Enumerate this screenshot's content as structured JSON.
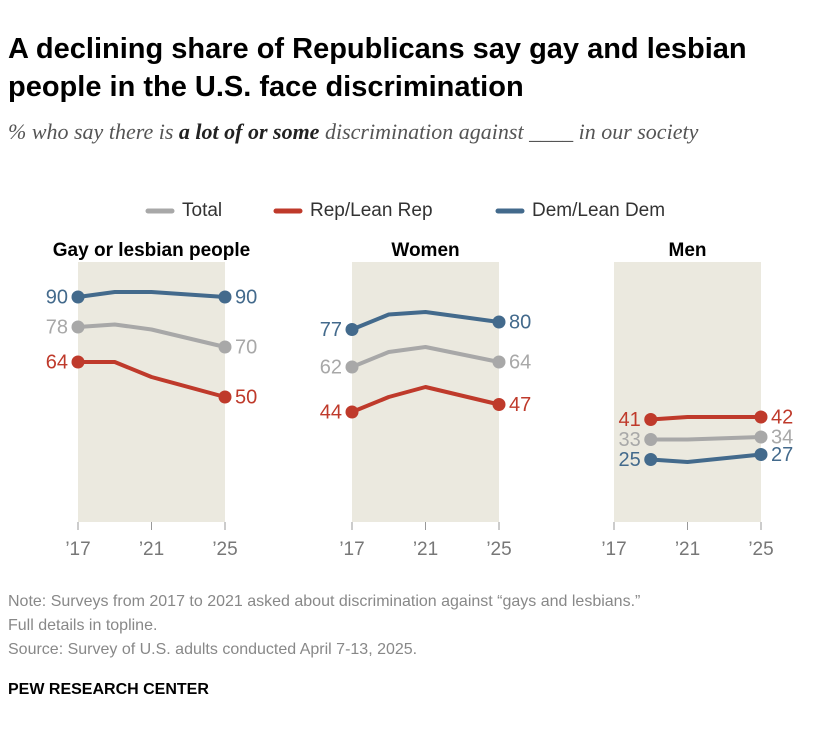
{
  "header": {
    "title": "A declining share of Republicans say gay and lesbian people in the U.S. face discrimination",
    "subtitle": [
      "% who say there is ",
      "a lot of or some",
      " discrimination against ____ in our society"
    ]
  },
  "legend": [
    {
      "name": "Total",
      "color": "#a8a8a8"
    },
    {
      "name": "Rep/Lean Rep",
      "color": "#bf3a2b"
    },
    {
      "name": "Dem/Lean Dem",
      "color": "#436a8c"
    }
  ],
  "chart_data": [
    {
      "type": "line",
      "title": "Gay or lesbian people",
      "x": [
        2017,
        2019,
        2021,
        2025
      ],
      "xlim": [
        2017,
        2025
      ],
      "xticks": [
        {
          "value": 2017,
          "label": "’17"
        },
        {
          "value": 2021,
          "label": "’21"
        },
        {
          "value": 2025,
          "label": "’25"
        }
      ],
      "ylim": [
        0,
        104
      ],
      "series": [
        {
          "values": [
            78,
            79,
            77,
            70
          ]
        },
        {
          "values": [
            64,
            64,
            58,
            50
          ]
        },
        {
          "values": [
            90,
            92,
            92,
            90
          ]
        }
      ]
    },
    {
      "type": "line",
      "title": "Women",
      "x": [
        2017,
        2019,
        2021,
        2025
      ],
      "xlim": [
        2017,
        2025
      ],
      "xticks": [
        {
          "value": 2017,
          "label": "’17"
        },
        {
          "value": 2021,
          "label": "’21"
        },
        {
          "value": 2025,
          "label": "’25"
        }
      ],
      "ylim": [
        0,
        104
      ],
      "series": [
        {
          "values": [
            62,
            68,
            70,
            64
          ]
        },
        {
          "values": [
            44,
            50,
            54,
            47
          ]
        },
        {
          "values": [
            77,
            83,
            84,
            80
          ]
        }
      ]
    },
    {
      "type": "line",
      "title": "Men",
      "x": [
        2017,
        2019,
        2021,
        2025
      ],
      "xlim": [
        2017,
        2025
      ],
      "xticks": [
        {
          "value": 2017,
          "label": "’17"
        },
        {
          "value": 2021,
          "label": "’21"
        },
        {
          "value": 2025,
          "label": "’25"
        }
      ],
      "ylim": [
        0,
        104
      ],
      "series": [
        {
          "values": [
            null,
            33,
            33,
            34
          ]
        },
        {
          "values": [
            null,
            41,
            42,
            42
          ]
        },
        {
          "values": [
            null,
            25,
            24,
            27
          ]
        }
      ]
    }
  ],
  "notes": [
    "Note: Surveys from 2017 to 2021 asked about discrimination against “gays and lesbians.”",
    "Full details in topline.",
    "Source: Survey of U.S. adults conducted April 7-13, 2025."
  ],
  "footer": "PEW RESEARCH CENTER"
}
